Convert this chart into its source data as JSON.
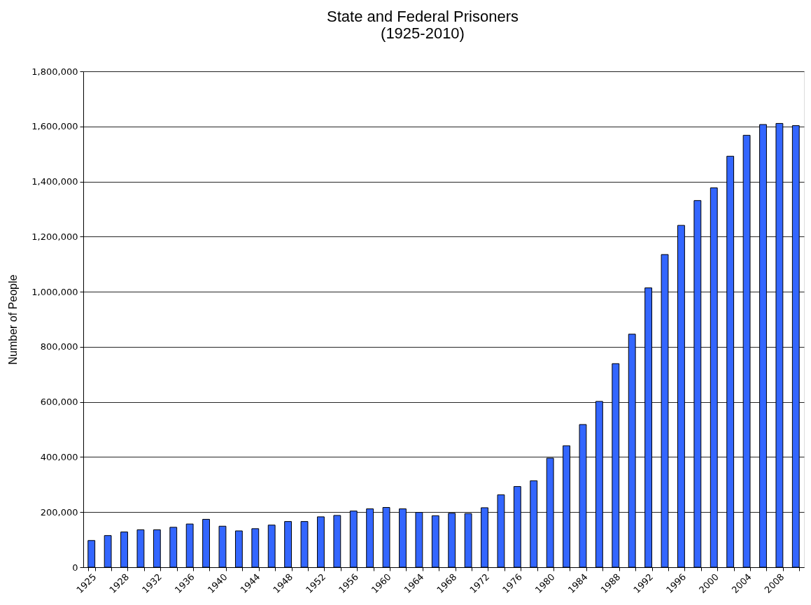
{
  "chart_data": {
    "type": "bar",
    "title": "State and Federal Prisoners",
    "subtitle": "(1925-2010)",
    "ylabel": "Number of People",
    "categories": [
      "1925",
      null,
      "1928",
      null,
      "1932",
      null,
      "1936",
      null,
      "1940",
      null,
      "1944",
      null,
      "1948",
      null,
      "1952",
      null,
      "1956",
      null,
      "1960",
      null,
      "1964",
      null,
      "1968",
      null,
      "1972",
      null,
      "1976",
      null,
      "1980",
      null,
      "1984",
      null,
      "1988",
      null,
      "1992",
      null,
      "1996",
      null,
      "2000",
      null,
      "2004",
      null,
      "2008",
      null
    ],
    "values": [
      97000,
      115000,
      128000,
      136000,
      136000,
      145000,
      157000,
      174000,
      149000,
      132000,
      140000,
      153000,
      166000,
      166000,
      183000,
      188000,
      204000,
      212000,
      217000,
      212000,
      199000,
      187000,
      196000,
      195000,
      216000,
      263000,
      293000,
      314000,
      396000,
      441000,
      518000,
      602000,
      739000,
      846000,
      1014000,
      1135000,
      1241000,
      1331000,
      1377000,
      1492000,
      1568000,
      1607000,
      1611000,
      1603000
    ],
    "color": "#3366ff",
    "ylim": [
      0,
      1800000
    ],
    "yticks": [
      0,
      {
        "value": 200000,
        "label": "200,000"
      },
      {
        "value": 400000,
        "label": "400,000"
      },
      {
        "value": 600000,
        "label": "600,000"
      },
      {
        "value": 800000,
        "label": "800,000"
      },
      {
        "value": 1000000,
        "label": "1,000,000"
      },
      {
        "value": 1200000,
        "label": "1,200,000"
      },
      {
        "value": 1400000,
        "label": "1,400,000"
      },
      {
        "value": 1600000,
        "label": "1,600,000"
      },
      {
        "value": 1800000,
        "label": "1,800,000"
      }
    ],
    "grid": "y"
  }
}
